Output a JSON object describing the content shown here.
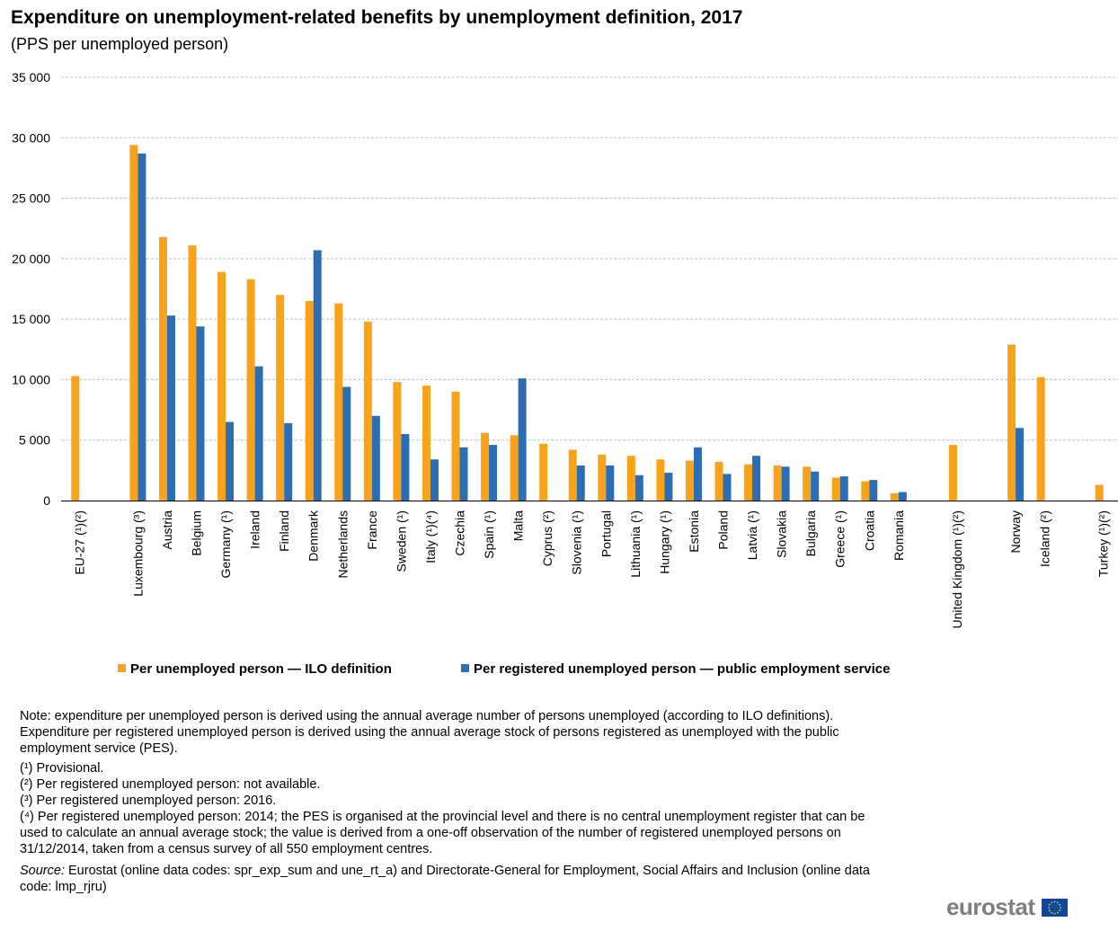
{
  "title": "Expenditure on unemployment-related benefits by unemployment definition, 2017",
  "subtitle": "(PPS per unemployed  person)",
  "colors": {
    "ilo": "#f9a31b",
    "pes": "#2c6db3",
    "grid": "#bfbfbf",
    "axis": "#000000"
  },
  "chart_data": {
    "type": "bar",
    "title": "Expenditure on unemployment-related benefits by unemployment definition, 2017",
    "ylabel": "PPS per unemployed person",
    "ylim": [
      0,
      35000
    ],
    "yticks": [
      0,
      5000,
      10000,
      15000,
      20000,
      25000,
      30000,
      35000
    ],
    "ytick_labels": [
      "0",
      "5 000",
      "10 000",
      "15 000",
      "20 000",
      "25 000",
      "30 000",
      "35 000"
    ],
    "grid": true,
    "legend_position": "bottom",
    "categories": [
      "EU-27 (¹)(²)",
      "",
      "Luxembourg (³)",
      "Austria",
      "Belgium",
      "Germany (¹)",
      "Ireland",
      "Finland",
      "Denmark",
      "Netherlands",
      "France",
      "Sweden (¹)",
      "Italy  (¹)(⁴)",
      "Czechia",
      "Spain (¹)",
      "Malta",
      "Cyprus (²)",
      "Slovenia (¹)",
      "Portugal",
      "Lithuania (¹)",
      "Hungary (¹)",
      "Estonia",
      "Poland",
      "Latvia (¹)",
      "Slovakia",
      "Bulgaria",
      "Greece (¹)",
      "Croatia",
      "Romania",
      "",
      "United Kingdom (¹)(²)",
      "",
      "Norway",
      "Iceland (²)",
      "",
      "Turkey (¹)(²)"
    ],
    "series": [
      {
        "name": "Per unemployed person — ILO definition",
        "values": [
          10300,
          null,
          29400,
          21800,
          21100,
          18900,
          18300,
          17000,
          16500,
          16300,
          14800,
          9800,
          9500,
          9000,
          5600,
          5400,
          4700,
          4200,
          3800,
          3700,
          3400,
          3300,
          3200,
          3000,
          2900,
          2800,
          1900,
          1600,
          600,
          null,
          4600,
          null,
          12900,
          10200,
          null,
          1300
        ]
      },
      {
        "name": "Per registered unemployed person — public employment service",
        "values": [
          null,
          null,
          28700,
          15300,
          14400,
          6500,
          11100,
          6400,
          20700,
          9400,
          7000,
          5500,
          3400,
          4400,
          4600,
          10100,
          null,
          2900,
          2900,
          2100,
          2300,
          4400,
          2200,
          3700,
          2800,
          2400,
          2000,
          1700,
          700,
          null,
          null,
          null,
          6000,
          null,
          null,
          null
        ]
      }
    ]
  },
  "legend": {
    "ilo_label": "Per unemployed person — ILO definition",
    "pes_label": "Per registered unemployed person — public employment service"
  },
  "notes": {
    "main": "Note: expenditure per unemployed person is derived using the annual average number of persons unemployed (according to ILO definitions). Expenditure per registered unemployed person is derived using the annual average stock of persons registered as unemployed with the public employment service (PES).",
    "fn1": "(¹) Provisional.",
    "fn2": "(²) Per registered unemployed person: not available.",
    "fn3": "(³) Per registered unemployed person: 2016.",
    "fn4": "(⁴) Per registered unemployed person: 2014; the PES is organised at the provincial level and there is no central unemployment register that can be used to calculate an annual average stock; the value is derived from a one-off observation of the number of registered unemployed persons on 31/12/2014, taken from a census survey of all 550 employment centres.",
    "source_label": "Source:",
    "source_text": " Eurostat (online data codes: spr_exp_sum and une_rt_a) and Directorate-General for Employment, Social Affairs and Inclusion (online data code: lmp_rjru)"
  },
  "logo": {
    "text": "eurostat",
    "icon": "eu-flag-icon"
  }
}
